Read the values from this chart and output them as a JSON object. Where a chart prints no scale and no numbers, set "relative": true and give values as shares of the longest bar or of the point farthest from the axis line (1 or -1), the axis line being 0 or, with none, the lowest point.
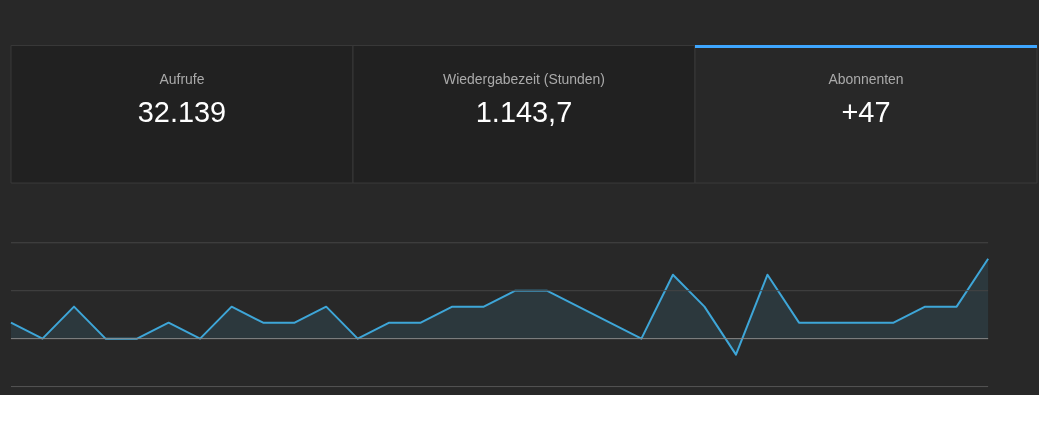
{
  "chart_data": [
    {
      "type": "other",
      "annotations": [
        "Aufrufe",
        "32.139",
        "Wiedergabezeit (Stunden)",
        "1.143,7",
        "Abonnenten",
        "+47"
      ]
    },
    {
      "type": "area",
      "relative": true,
      "ref_lines": [
        {
          "axis": "y",
          "value": 1.2,
          "color": "#444444"
        },
        {
          "axis": "y",
          "value": 0.6,
          "color": "#444444"
        },
        {
          "axis": "y",
          "value": -0.6,
          "color": "#555555"
        }
      ],
      "categories": [
        null,
        null,
        null,
        null,
        null,
        null,
        null,
        null,
        null,
        null,
        null,
        null,
        null,
        null,
        null,
        null,
        null,
        null,
        null,
        null,
        null,
        null,
        null,
        null,
        null,
        null,
        null,
        null,
        null,
        null,
        null,
        null
      ],
      "series": [
        {
          "color": "#3ea6d8",
          "values": [
            0.2,
            0,
            0.4,
            0,
            0,
            0.2,
            0,
            0.4,
            0.2,
            0.2,
            0.4,
            0,
            0.2,
            0.2,
            0.4,
            0.4,
            0.6,
            0.6,
            0.4,
            0.2,
            0,
            0.8,
            0.4,
            -0.2,
            0.8,
            0.2,
            0.2,
            0.2,
            0.2,
            0.4,
            0.4,
            1
          ]
        }
      ]
    }
  ]
}
